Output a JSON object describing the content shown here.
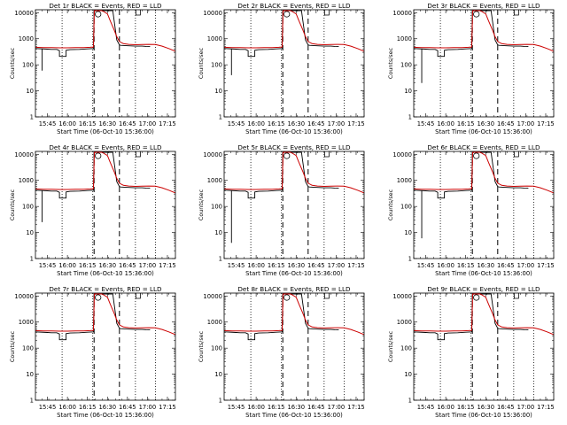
{
  "chart_data": {
    "type": "line",
    "ylabel": "Counts/sec",
    "xlabel": "Start Time (06-Oct-10 15:36:00)",
    "y_scale": "log",
    "ylim": [
      1,
      13000
    ],
    "y_ticks": [
      "1",
      "10",
      "100",
      "1000",
      "10000"
    ],
    "x_ticks": [
      "15:45",
      "16:00",
      "16:15",
      "16:30",
      "16:45",
      "17:00",
      "17:15"
    ],
    "x_tick_minutes": [
      9,
      24,
      39,
      54,
      69,
      84,
      99
    ],
    "xlim_minutes": [
      0,
      105
    ],
    "dotted_lines_minutes": [
      20,
      43,
      75,
      90
    ],
    "dashed_lines_minutes": [
      44,
      63
    ],
    "annotation_markers": [
      {
        "symbol": "circle",
        "at_minute": 47
      },
      {
        "symbol": "bracket",
        "at_minute": 77
      }
    ],
    "colors": {
      "events": "#000000",
      "lld": "#cc0000"
    },
    "series_legend": "BLACK = Events, RED = LLD",
    "panels": [
      {
        "title": "Det 1r BLACK = Events, RED = LLD",
        "events_dip_min": 60
      },
      {
        "title": "Det 2r BLACK = Events, RED = LLD",
        "events_dip_min": 40
      },
      {
        "title": "Det 3r BLACK = Events, RED = LLD",
        "events_dip_min": 20
      },
      {
        "title": "Det 4r BLACK = Events, RED = LLD",
        "events_dip_min": 25
      },
      {
        "title": "Det 5r BLACK = Events, RED = LLD",
        "events_dip_min": 4
      },
      {
        "title": "Det 6r BLACK = Events, RED = LLD",
        "events_dip_min": 6
      },
      {
        "title": "Det 7r BLACK = Events, RED = LLD",
        "events_dip_min": 0
      },
      {
        "title": "Det 8r BLACK = Events, RED = LLD",
        "events_dip_min": 0
      },
      {
        "title": "Det 9r BLACK = Events, RED = LLD",
        "events_dip_min": 0
      }
    ],
    "events_series": {
      "x_minutes": [
        0,
        9,
        12,
        16,
        18,
        18,
        23,
        23,
        26,
        33,
        39,
        43.5,
        44,
        46,
        48,
        58,
        61,
        63,
        64,
        68,
        75,
        80,
        83,
        86
      ],
      "counts": [
        420,
        400,
        390,
        390,
        350,
        210,
        210,
        360,
        380,
        390,
        410,
        420,
        12000,
        12000,
        12000,
        12000,
        900,
        580,
        560,
        540,
        520,
        520,
        510,
        500
      ]
    },
    "lld_series": {
      "x_minutes": [
        0,
        6,
        12,
        18,
        24,
        30,
        36,
        41,
        43.5,
        44.2,
        46,
        50,
        54,
        56,
        59,
        61,
        63,
        66,
        70,
        75,
        80,
        85,
        90,
        95,
        100,
        105
      ],
      "counts": [
        470,
        460,
        455,
        450,
        450,
        455,
        460,
        470,
        480,
        12000,
        12000,
        12000,
        9000,
        5000,
        2200,
        1200,
        780,
        650,
        610,
        590,
        600,
        610,
        600,
        520,
        420,
        330
      ]
    }
  }
}
